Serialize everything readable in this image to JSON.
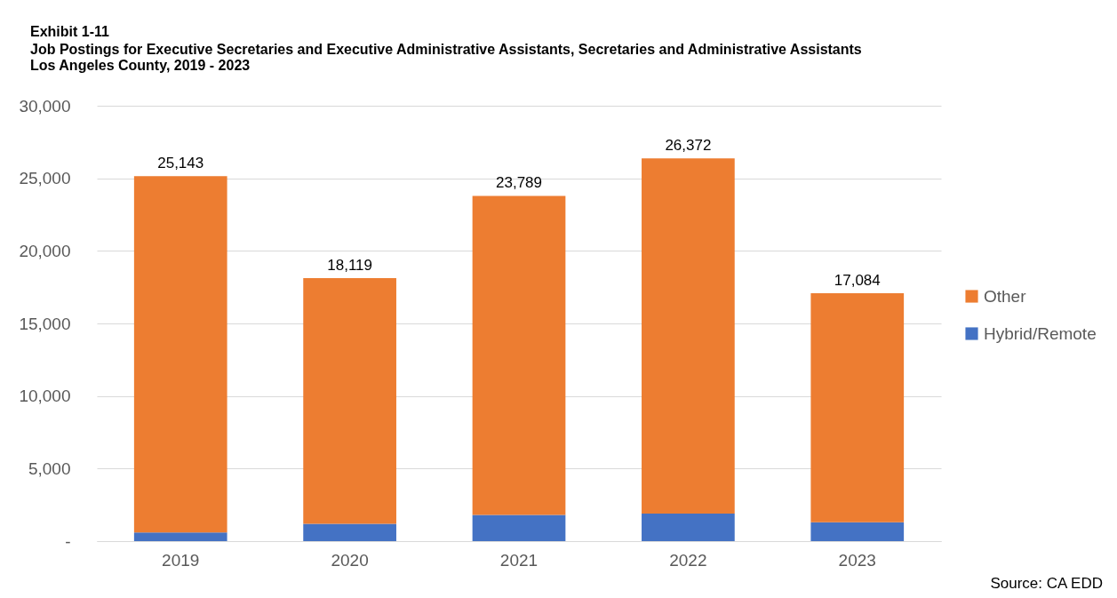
{
  "chart_data": {
    "type": "bar",
    "title": "Exhibit 1-11",
    "subtitle": "Job Postings for Executive Secretaries and Executive Administrative Assistants, Secretaries and Administrative Assistants\nLos Angeles County, 2019 - 2023",
    "annotations": [
      "Source: CA EDD"
    ],
    "categories": [
      "2019",
      "2020",
      "2021",
      "2022",
      "2023"
    ],
    "stacked": true,
    "series": [
      {
        "name": "Hybrid/Remote",
        "color": "#4472c4",
        "values": [
          600,
          1200,
          1800,
          1900,
          1300
        ]
      },
      {
        "name": "Other",
        "color": "#ed7d31",
        "values": [
          24543,
          16919,
          21989,
          24472,
          15784
        ]
      }
    ],
    "totals": [
      "25,143",
      "18,119",
      "23,789",
      "26,372",
      "17,084"
    ],
    "ylim": [
      0,
      30000
    ],
    "yticks": [
      {
        "value": 0,
        "label": "-"
      },
      {
        "value": 5000,
        "label": "5,000"
      },
      {
        "value": 10000,
        "label": "10,000"
      },
      {
        "value": 15000,
        "label": "15,000"
      },
      {
        "value": 20000,
        "label": "20,000"
      },
      {
        "value": 25000,
        "label": "25,000"
      },
      {
        "value": 30000,
        "label": "30,000"
      }
    ],
    "grid": "y",
    "legend": "right"
  }
}
